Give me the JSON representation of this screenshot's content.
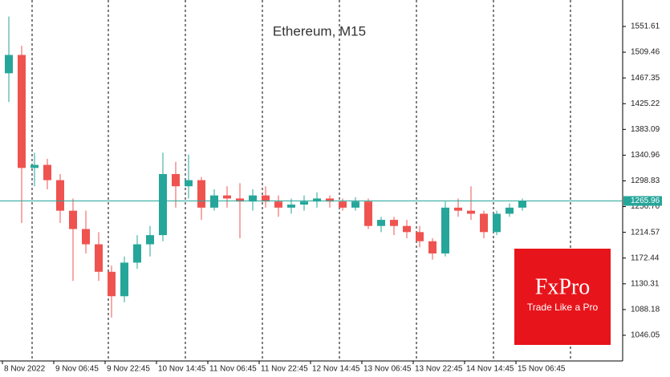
{
  "chart_data": {
    "type": "candlestick",
    "title": "Ethereum, M15",
    "open": [
      1475,
      1505,
      1320,
      1325,
      1300,
      1250,
      1220,
      1195,
      1150,
      1110,
      1165,
      1195,
      1210,
      1310,
      1290,
      1300,
      1255,
      1275,
      1270,
      1265,
      1275,
      1265,
      1255,
      1260,
      1265,
      1270,
      1265,
      1255,
      1265,
      1225,
      1235,
      1225,
      1215,
      1200,
      1180,
      1255,
      1250,
      1245,
      1215,
      1245,
      1255
    ],
    "high": [
      1568,
      1520,
      1345,
      1335,
      1310,
      1270,
      1250,
      1215,
      1160,
      1175,
      1210,
      1225,
      1345,
      1330,
      1342,
      1305,
      1285,
      1290,
      1295,
      1285,
      1290,
      1275,
      1270,
      1275,
      1280,
      1275,
      1270,
      1272,
      1270,
      1240,
      1240,
      1235,
      1225,
      1205,
      1265,
      1270,
      1290,
      1250,
      1250,
      1262,
      1270
    ],
    "low": [
      1428,
      1230,
      1290,
      1285,
      1230,
      1135,
      1180,
      1135,
      1075,
      1100,
      1155,
      1175,
      1200,
      1255,
      1270,
      1235,
      1250,
      1255,
      1205,
      1250,
      1255,
      1240,
      1245,
      1250,
      1255,
      1255,
      1250,
      1250,
      1220,
      1215,
      1210,
      1205,
      1190,
      1170,
      1175,
      1240,
      1235,
      1205,
      1210,
      1240,
      1250
    ],
    "close": [
      1505,
      1320,
      1325,
      1300,
      1250,
      1220,
      1195,
      1150,
      1110,
      1165,
      1195,
      1210,
      1310,
      1290,
      1300,
      1255,
      1275,
      1270,
      1265,
      1275,
      1265,
      1255,
      1260,
      1265,
      1270,
      1265,
      1255,
      1265,
      1225,
      1235,
      1225,
      1215,
      1200,
      1180,
      1255,
      1250,
      1245,
      1215,
      1245,
      1255,
      1265.96
    ],
    "up_color": "#26a69a",
    "down_color": "#ef5350",
    "last_price": 1265.96,
    "last_price_color": "#26a69a",
    "ylim": [
      1004,
      1594.94
    ],
    "yticks": [
      1551.61,
      1509.46,
      1467.35,
      1425.22,
      1383.09,
      1340.96,
      1298.83,
      {
        "value": 1256.7,
        "label": "1256.70"
      },
      1214.57,
      1172.44,
      1130.31,
      1088.18,
      1046.05
    ],
    "xticks": [
      {
        "value": 0,
        "label": "8 Nov 2022"
      },
      {
        "value": 4,
        "label": "9 Nov 06:45"
      },
      {
        "value": 8,
        "label": "9 Nov 22:45"
      },
      {
        "value": 12,
        "label": "10 Nov 14:45"
      },
      {
        "value": 16,
        "label": "11 Nov 06:45"
      },
      {
        "value": 20,
        "label": "11 Nov 22:45"
      },
      {
        "value": 24,
        "label": "12 Nov 14:45"
      },
      {
        "value": 28,
        "label": "13 Nov 06:45"
      },
      {
        "value": 32,
        "label": "13 Nov 22:45"
      },
      {
        "value": 36,
        "label": "14 Nov 14:45"
      },
      {
        "value": 40,
        "label": "15 Nov 06:45"
      }
    ]
  },
  "logo": {
    "name": "FxPro",
    "tagline": "Trade Like a Pro"
  }
}
